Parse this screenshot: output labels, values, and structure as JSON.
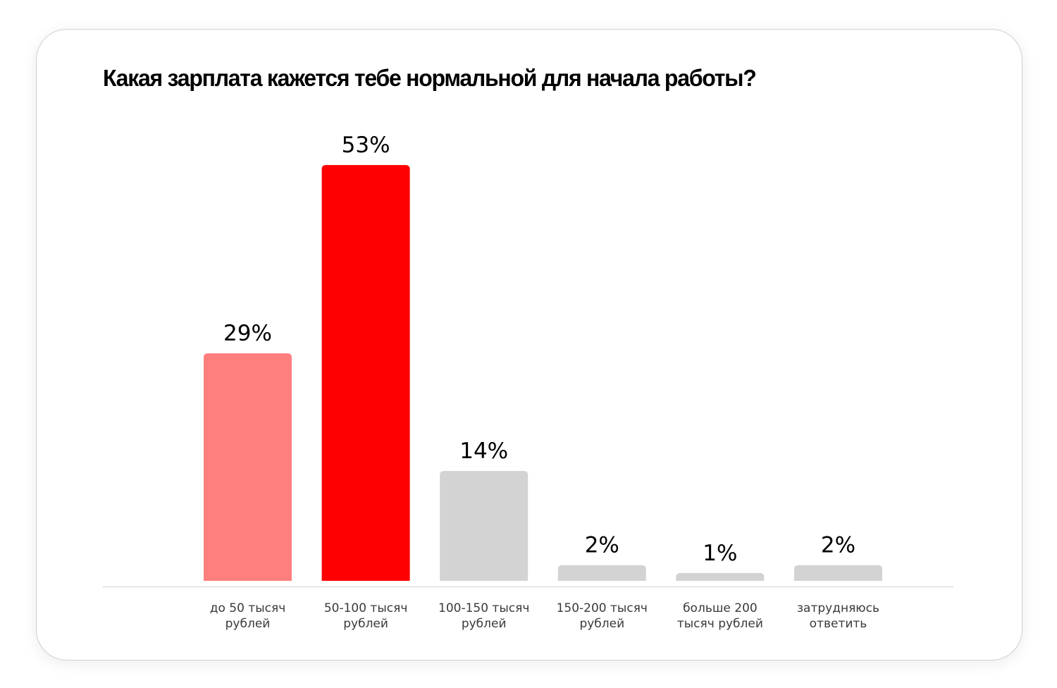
{
  "chart_data": {
    "type": "bar",
    "title": "Какая зарплата кажется тебе нормальной для начала работы?",
    "xlabel": "",
    "ylabel": "",
    "ylim": [
      0,
      55
    ],
    "grid": false,
    "unit": "%",
    "categories": [
      [
        "до 50 тысяч",
        "рублей"
      ],
      [
        "50-100 тысяч",
        "рублей"
      ],
      [
        "100-150 тысяч",
        "рублей"
      ],
      [
        "150-200 тысяч",
        "рублей"
      ],
      [
        "больше 200",
        "тысяч рублей"
      ],
      [
        "затрудняюсь",
        "ответить"
      ]
    ],
    "values": [
      29,
      53,
      14,
      2,
      1,
      2
    ],
    "value_labels": [
      "29%",
      "53%",
      "14%",
      "2%",
      "1%",
      "2%"
    ],
    "colors": [
      "#ff7f7f",
      "#ff0000",
      "#d3d3d3",
      "#d3d3d3",
      "#d3d3d3",
      "#d3d3d3"
    ],
    "axis_color": "#e6e6e6"
  }
}
